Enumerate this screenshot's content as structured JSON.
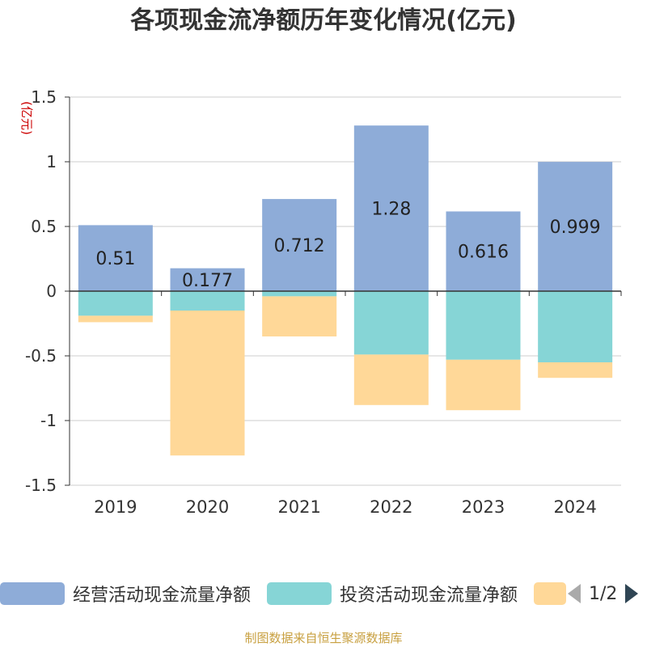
{
  "chart_data": {
    "type": "bar",
    "stacked": true,
    "title": "各项现金流净额历年变化情况(亿元)",
    "ylabel": "(亿元)",
    "xlabel": "",
    "ylim": [
      -1.5,
      1.5
    ],
    "yticks": [
      -1.5,
      -1,
      -0.5,
      0,
      0.5,
      1,
      1.5
    ],
    "ytick_labels": [
      "-1.5",
      "-1",
      "-0.5",
      "0",
      "0.5",
      "1",
      "1.5"
    ],
    "categories": [
      "2019",
      "2020",
      "2021",
      "2022",
      "2023",
      "2024"
    ],
    "series": [
      {
        "name": "经营活动现金流量净额",
        "color": "#8eacd8",
        "values": [
          0.51,
          0.177,
          0.712,
          1.28,
          0.616,
          0.999
        ],
        "labels": [
          "0.51",
          "0.177",
          "0.712",
          "1.28",
          "0.616",
          "0.999"
        ]
      },
      {
        "name": "投资活动现金流量净额",
        "color": "#86d5d6",
        "values": [
          -0.19,
          -0.15,
          -0.04,
          -0.49,
          -0.53,
          -0.55
        ]
      },
      {
        "name": "",
        "color": "#ffd898",
        "values": [
          -0.05,
          -1.12,
          -0.31,
          -0.39,
          -0.39,
          -0.12
        ]
      }
    ],
    "legend": {
      "page": "1/2",
      "placement": "bottom"
    }
  },
  "source_note": "制图数据来自恒生聚源数据库"
}
